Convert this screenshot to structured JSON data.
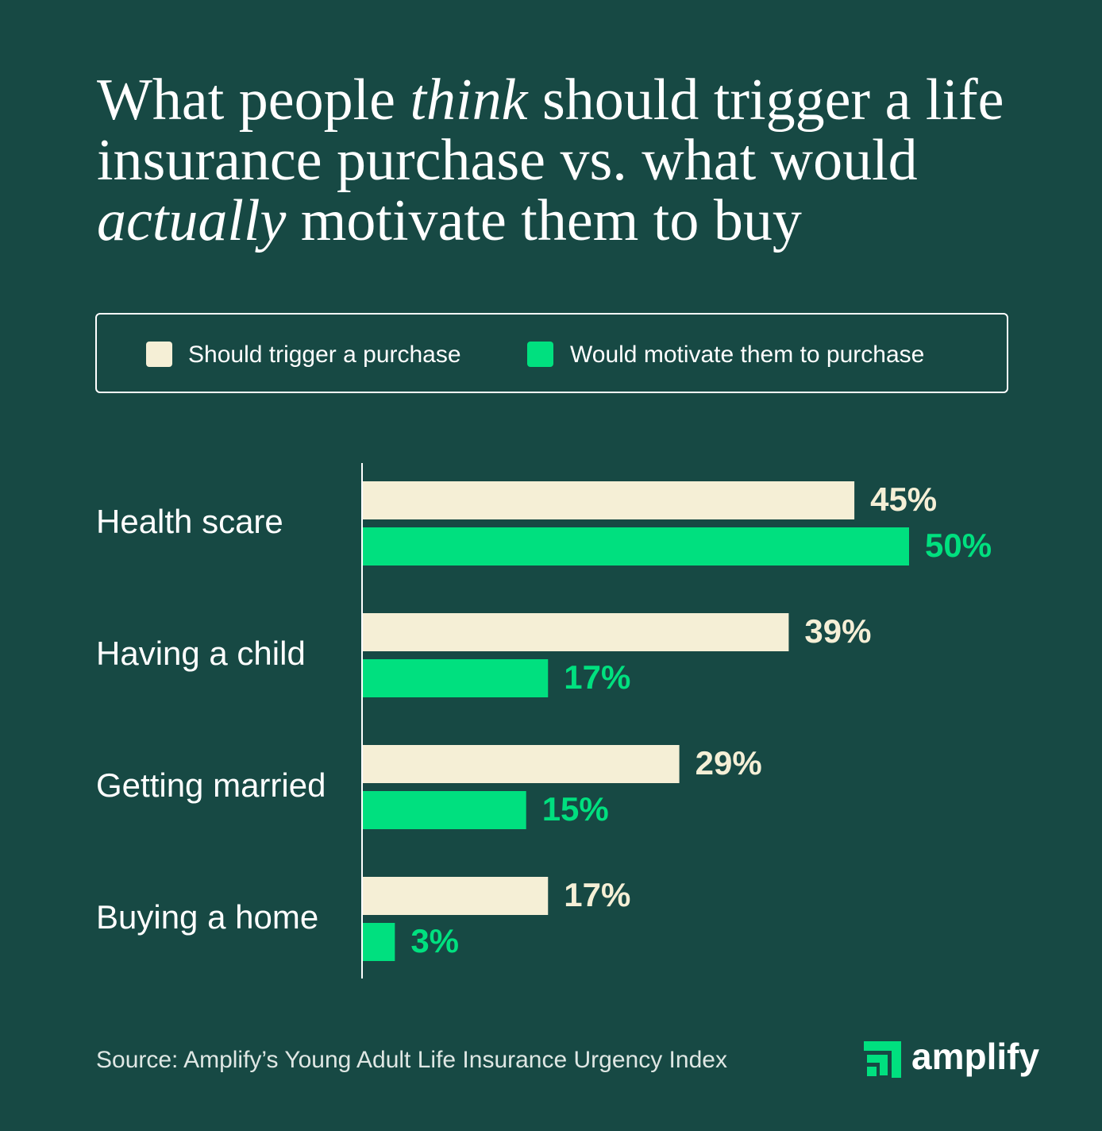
{
  "chart_data": {
    "type": "bar",
    "orientation": "horizontal",
    "title": [
      "What people ",
      "think",
      " should trigger a life insurance purchase vs. what would ",
      "actually",
      " motivate them to buy"
    ],
    "categories": [
      "Health scare",
      "Having a child",
      "Getting married",
      "Buying a home"
    ],
    "series": [
      {
        "name": "Should trigger a purchase",
        "color": "#f5efd6",
        "values": [
          45,
          39,
          29,
          17
        ],
        "value_labels": [
          "45%",
          "39%",
          "29%",
          "17%"
        ]
      },
      {
        "name": "Would motivate them to purchase",
        "color": "#00e07f",
        "values": [
          50,
          17,
          15,
          3
        ],
        "value_labels": [
          "50%",
          "17%",
          "15%",
          "3%"
        ]
      }
    ],
    "xlim": [
      0,
      50
    ],
    "source": "Source: Amplify’s Young Adult Life Insurance Urgency Index",
    "logo": "amplify"
  }
}
